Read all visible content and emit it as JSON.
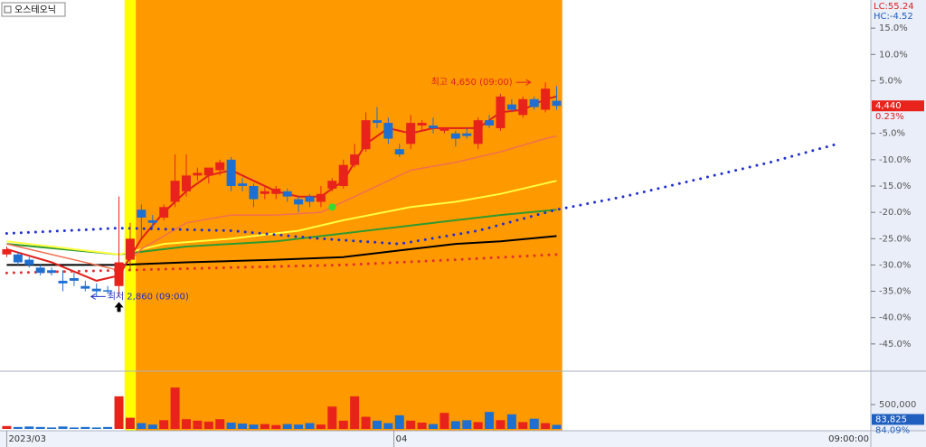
{
  "chart_data": {
    "type": "candlestick",
    "title": "오스테오닉",
    "xlim": [
      -0.6,
      77
    ],
    "xticks": [
      {
        "value": 0,
        "label": "2023/03"
      },
      {
        "value": 34.5,
        "label": "04"
      }
    ],
    "time_label": "09:00:00",
    "ylim": [
      -50,
      20
    ],
    "yticks": [
      {
        "value": 15,
        "label": "15.0%"
      },
      {
        "value": 10,
        "label": "10.0%"
      },
      {
        "value": 5,
        "label": "5.0%"
      },
      {
        "value": -5,
        "label": "-5.0%"
      },
      {
        "value": -10,
        "label": "-10.0%"
      },
      {
        "value": -15,
        "label": "-15.0%"
      },
      {
        "value": -20,
        "label": "-20.0%"
      },
      {
        "value": -25,
        "label": "-25.0%"
      },
      {
        "value": -30,
        "label": "-30.0%"
      },
      {
        "value": -35,
        "label": "-35.0%"
      },
      {
        "value": -40,
        "label": "-40.0%"
      },
      {
        "value": -45,
        "label": "-45.0%"
      }
    ],
    "up_color": "#e8231c",
    "down_color": "#1f6fd0",
    "open": [
      -28,
      -28,
      -29,
      -30.5,
      -31,
      -33,
      -32.5,
      -34,
      -34.5,
      -34.8,
      -34,
      -29,
      -19.5,
      -21.5,
      -21,
      -18,
      -16,
      -13,
      -13,
      -12,
      -10,
      -14.5,
      -15,
      -16.5,
      -16.5,
      -16,
      -17.5,
      -17,
      -18,
      -15.5,
      -15,
      -11,
      -8,
      -2.5,
      -3,
      -8,
      -7,
      -3.5,
      -3.5,
      -4.5,
      -5,
      -5,
      -7,
      -2.5,
      -4,
      0.5,
      -1.5,
      1.5,
      -0.5,
      1.2
    ],
    "high": [
      -26.5,
      -27.5,
      -28.5,
      -30,
      -30.5,
      -31,
      -31.5,
      -33,
      -33.5,
      -34,
      -17,
      -22,
      -18.5,
      -20.5,
      -18.5,
      -9,
      -9,
      -11.5,
      -12,
      -10,
      -9.5,
      -13.5,
      -14.5,
      -15,
      -15,
      -15.5,
      -17,
      -16.5,
      -15,
      -13.5,
      -10,
      -7,
      -1,
      0,
      -2,
      -7,
      -1.5,
      -2.5,
      -2,
      -4,
      -4.5,
      -4,
      -2,
      -1.5,
      2.5,
      1.5,
      2,
      2,
      4.7,
      4
    ],
    "low": [
      -28.5,
      -30,
      -30.5,
      -32,
      -32,
      -35,
      -34,
      -35,
      -36,
      -35.5,
      -36,
      -31,
      -25,
      -23,
      -21.5,
      -19,
      -17,
      -14,
      -14.5,
      -13,
      -16,
      -16,
      -19,
      -17.5,
      -17.5,
      -18,
      -20,
      -19,
      -19,
      -16,
      -15.5,
      -11.5,
      -8.5,
      -4,
      -7,
      -9.5,
      -8,
      -4.5,
      -5,
      -5,
      -7.5,
      -6,
      -8,
      -4,
      -4.5,
      -1,
      -2,
      -0.5,
      -1,
      -0.5
    ],
    "close": [
      -27,
      -29.5,
      -30,
      -31.5,
      -31.5,
      -33.5,
      -33,
      -34.5,
      -35,
      -35,
      -29.5,
      -25,
      -21,
      -22,
      -19,
      -14,
      -13,
      -12.5,
      -11.5,
      -10.5,
      -15,
      -15,
      -17.5,
      -16,
      -15.5,
      -17,
      -18.5,
      -18,
      -16.5,
      -14,
      -11,
      -9,
      -2.5,
      -3,
      -6,
      -9,
      -3,
      -3,
      -4,
      -4,
      -6,
      -5.5,
      -2.5,
      -3.5,
      2,
      -0.5,
      1.5,
      0,
      3.5,
      0.23
    ],
    "bands": [
      {
        "start": 10.5,
        "end": 11.5,
        "color": "#ffff00"
      },
      {
        "start": 11.5,
        "end": 49.5,
        "color": "#ff9900"
      }
    ],
    "lines": [
      {
        "color": "#000000",
        "width": 2,
        "dashed": false,
        "x": [
          0,
          10,
          16,
          24,
          30,
          36,
          40,
          44,
          49
        ],
        "values": [
          -30,
          -30,
          -29.5,
          -29,
          -28.5,
          -27,
          -26,
          -25.5,
          -24.5
        ]
      },
      {
        "color": "#2e9a2e",
        "width": 2,
        "dashed": false,
        "x": [
          0,
          10,
          16,
          24,
          30,
          36,
          40,
          44,
          49
        ],
        "values": [
          -26,
          -28,
          -26.5,
          -25.5,
          -24,
          -22.5,
          -21.5,
          -20.5,
          -19.5
        ]
      },
      {
        "color": "#ffff40",
        "width": 2,
        "dashed": false,
        "x": [
          0,
          10,
          14,
          20,
          26,
          30,
          36,
          40,
          44,
          49
        ],
        "values": [
          -25.5,
          -28,
          -26,
          -25,
          -23.5,
          -21.5,
          -19,
          -18,
          -16.5,
          -14
        ]
      },
      {
        "color": "#f07050",
        "width": 1.5,
        "dashed": false,
        "x": [
          0,
          10,
          12,
          16,
          20,
          24,
          28,
          32,
          36,
          40,
          44,
          48,
          49
        ],
        "values": [
          -26,
          -31,
          -27,
          -22,
          -20.5,
          -20.5,
          -20,
          -16,
          -12,
          -10.5,
          -8.5,
          -6,
          -5.5
        ]
      },
      {
        "color": "#e0201a",
        "width": 2,
        "dashed": false,
        "x": [
          0,
          4,
          8,
          10,
          12,
          14,
          16,
          18,
          20,
          22,
          24,
          26,
          28,
          30,
          32,
          34,
          36,
          38,
          40,
          42,
          44,
          46,
          48,
          49
        ],
        "values": [
          -27,
          -29.5,
          -33,
          -32,
          -25,
          -20,
          -16,
          -13,
          -12,
          -14,
          -16,
          -17,
          -17,
          -14,
          -7,
          -4,
          -5,
          -4,
          -4,
          -4,
          -1,
          -0.5,
          1.5,
          2
        ]
      },
      {
        "color": "#2030d0",
        "width": 3,
        "dashed": true,
        "x": [
          0,
          10,
          20,
          28,
          35,
          42,
          49,
          55,
          62,
          68,
          74
        ],
        "values": [
          -24,
          -23,
          -23.5,
          -25,
          -26,
          -23.5,
          -19.5,
          -17,
          -13.5,
          -10.5,
          -7
        ]
      },
      {
        "color": "#e03030",
        "width": 3,
        "dashed": true,
        "x": [
          0,
          10,
          20,
          30,
          40,
          49
        ],
        "values": [
          -31.5,
          -31,
          -30.5,
          -30,
          -29,
          -28
        ]
      }
    ],
    "markers": [
      {
        "x": 29,
        "value": -19,
        "color": "#33dd33"
      }
    ],
    "annotations": [
      {
        "text": "최고 4,650 (09:00)",
        "x": 47,
        "value": 4.7,
        "color": "#e02020",
        "side": "left"
      },
      {
        "text": "최저 2,860 (09:00)",
        "x": 8,
        "value": -36,
        "color": "#2030c0",
        "side": "right"
      }
    ],
    "legend_lc": "LC:55.24",
    "legend_hc": "HC:-4.52",
    "last_price": {
      "label": "4,440",
      "value": 0.23,
      "change_label": "0.23%"
    },
    "volume": {
      "values": [
        60000,
        40000,
        50000,
        40000,
        30000,
        50000,
        30000,
        40000,
        30000,
        40000,
        670000,
        230000,
        120000,
        90000,
        180000,
        850000,
        200000,
        170000,
        150000,
        200000,
        130000,
        110000,
        90000,
        100000,
        80000,
        100000,
        90000,
        120000,
        90000,
        460000,
        170000,
        670000,
        250000,
        170000,
        120000,
        280000,
        170000,
        130000,
        100000,
        330000,
        160000,
        180000,
        140000,
        350000,
        180000,
        300000,
        140000,
        210000,
        120000,
        83825
      ],
      "ylim": [
        0,
        1150000
      ],
      "yticks": [
        {
          "value": 500000,
          "label": "500,000"
        }
      ],
      "last_label": "83,825",
      "ratio_label": "84.09%"
    }
  }
}
